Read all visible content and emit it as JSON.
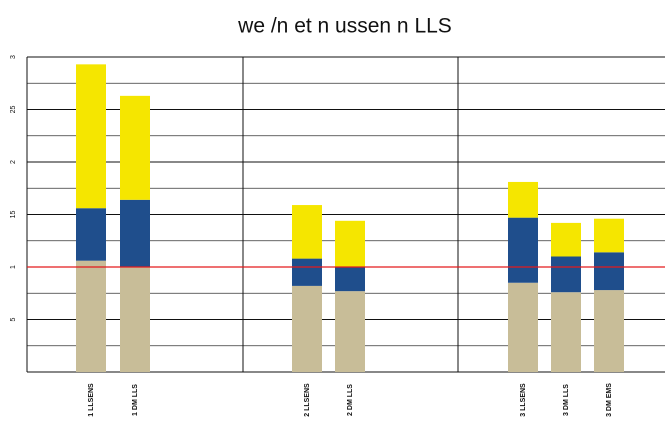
{
  "chart_data": {
    "type": "stacked_bar",
    "title": "we /n et n ussen n LLS",
    "categories": [
      "1 LLSENS",
      "1 DM LLS",
      "2 LLSENS",
      "2 DM LLS",
      "3 LLSENS",
      "3 DM LLS",
      "3 DM EMS"
    ],
    "series": [
      {
        "color": "#c8bd98",
        "values": [
          1.06,
          1.0,
          0.82,
          0.77,
          0.85,
          0.76,
          0.78
        ]
      },
      {
        "color": "#1f4e8c",
        "values": [
          0.5,
          0.64,
          0.26,
          0.23,
          0.62,
          0.34,
          0.36
        ]
      },
      {
        "color": "#f5e600",
        "values": [
          1.37,
          0.99,
          0.51,
          0.44,
          0.34,
          0.32,
          0.32
        ]
      }
    ],
    "ylim": [
      0,
      3
    ],
    "yticks": [
      {
        "value": 0.5,
        "label": "5"
      },
      1,
      {
        "value": 1.5,
        "label": "15"
      },
      2,
      {
        "value": 2.5,
        "label": "25"
      },
      3
    ],
    "minor_yticks": [
      0.25,
      0.75,
      1.25,
      1.75,
      2.25,
      2.75
    ],
    "grid": true,
    "reference_line": {
      "value": 1,
      "color": "#e31a1c"
    }
  }
}
